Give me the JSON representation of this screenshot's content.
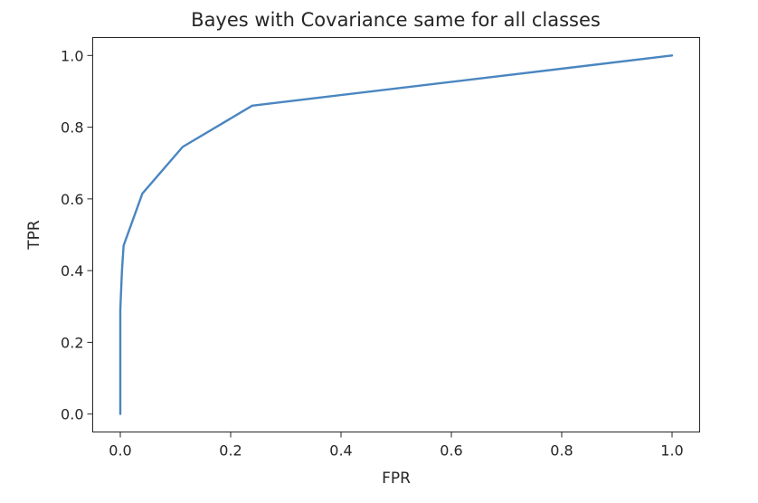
{
  "chart_data": {
    "type": "line",
    "title": "Bayes with Covariance same for all classes",
    "xlabel": "FPR",
    "ylabel": "TPR",
    "xlim": [
      -0.05,
      1.05
    ],
    "ylim": [
      -0.05,
      1.05
    ],
    "xticks": [
      0.0,
      0.2,
      0.4,
      0.6,
      0.8,
      1.0
    ],
    "yticks": [
      0.0,
      0.2,
      0.4,
      0.6,
      0.8,
      1.0
    ],
    "xtick_labels": [
      "0.0",
      "0.2",
      "0.4",
      "0.6",
      "0.8",
      "1.0"
    ],
    "ytick_labels": [
      "0.0",
      "0.2",
      "0.4",
      "0.6",
      "0.8",
      "1.0"
    ],
    "grid": false,
    "series": [
      {
        "color": "#4a86c0",
        "x": [
          0.0,
          0.0,
          0.003,
          0.006,
          0.04,
          0.113,
          0.239,
          1.0
        ],
        "y": [
          0.0,
          0.29,
          0.4,
          0.47,
          0.615,
          0.745,
          0.86,
          1.0
        ]
      }
    ]
  }
}
